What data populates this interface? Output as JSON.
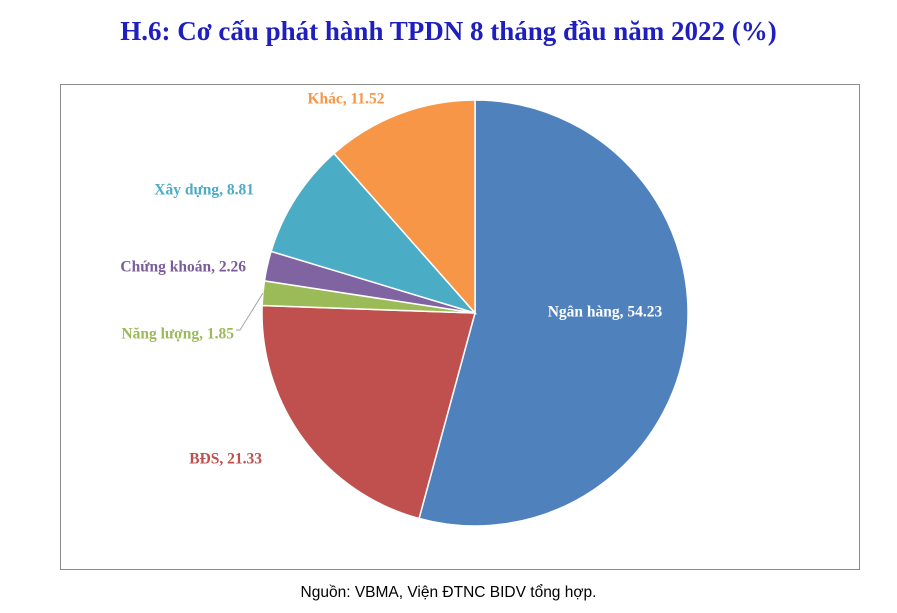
{
  "chart_data": {
    "type": "pie",
    "title": "H.6: Cơ cấu phát hành TPDN 8 tháng đầu năm 2022 (%)",
    "slices": [
      {
        "label": "Ngân hàng, 54.23",
        "value": 54.23,
        "color": "#4f81bd",
        "label_color": "#ffffff"
      },
      {
        "label": "BĐS, 21.33",
        "value": 21.33,
        "color": "#c0504d",
        "label_color": "#c0504d"
      },
      {
        "label": "Năng lượng, 1.85",
        "value": 1.85,
        "color": "#9bbb59",
        "label_color": "#9bbb59"
      },
      {
        "label": "Chứng khoán, 2.26",
        "value": 2.26,
        "color": "#8064a2",
        "label_color": "#7a5c9a"
      },
      {
        "label": "Xây dựng, 8.81",
        "value": 8.81,
        "color": "#4bacc6",
        "label_color": "#4bacc6"
      },
      {
        "label": "Khác, 11.52",
        "value": 11.52,
        "color": "#f79646",
        "label_color": "#f79646"
      }
    ],
    "start": "12 o'clock",
    "direction": "clockwise"
  },
  "source": "Nguồn: VBMA, Viện ĐTNC BIDV tổng hợp."
}
